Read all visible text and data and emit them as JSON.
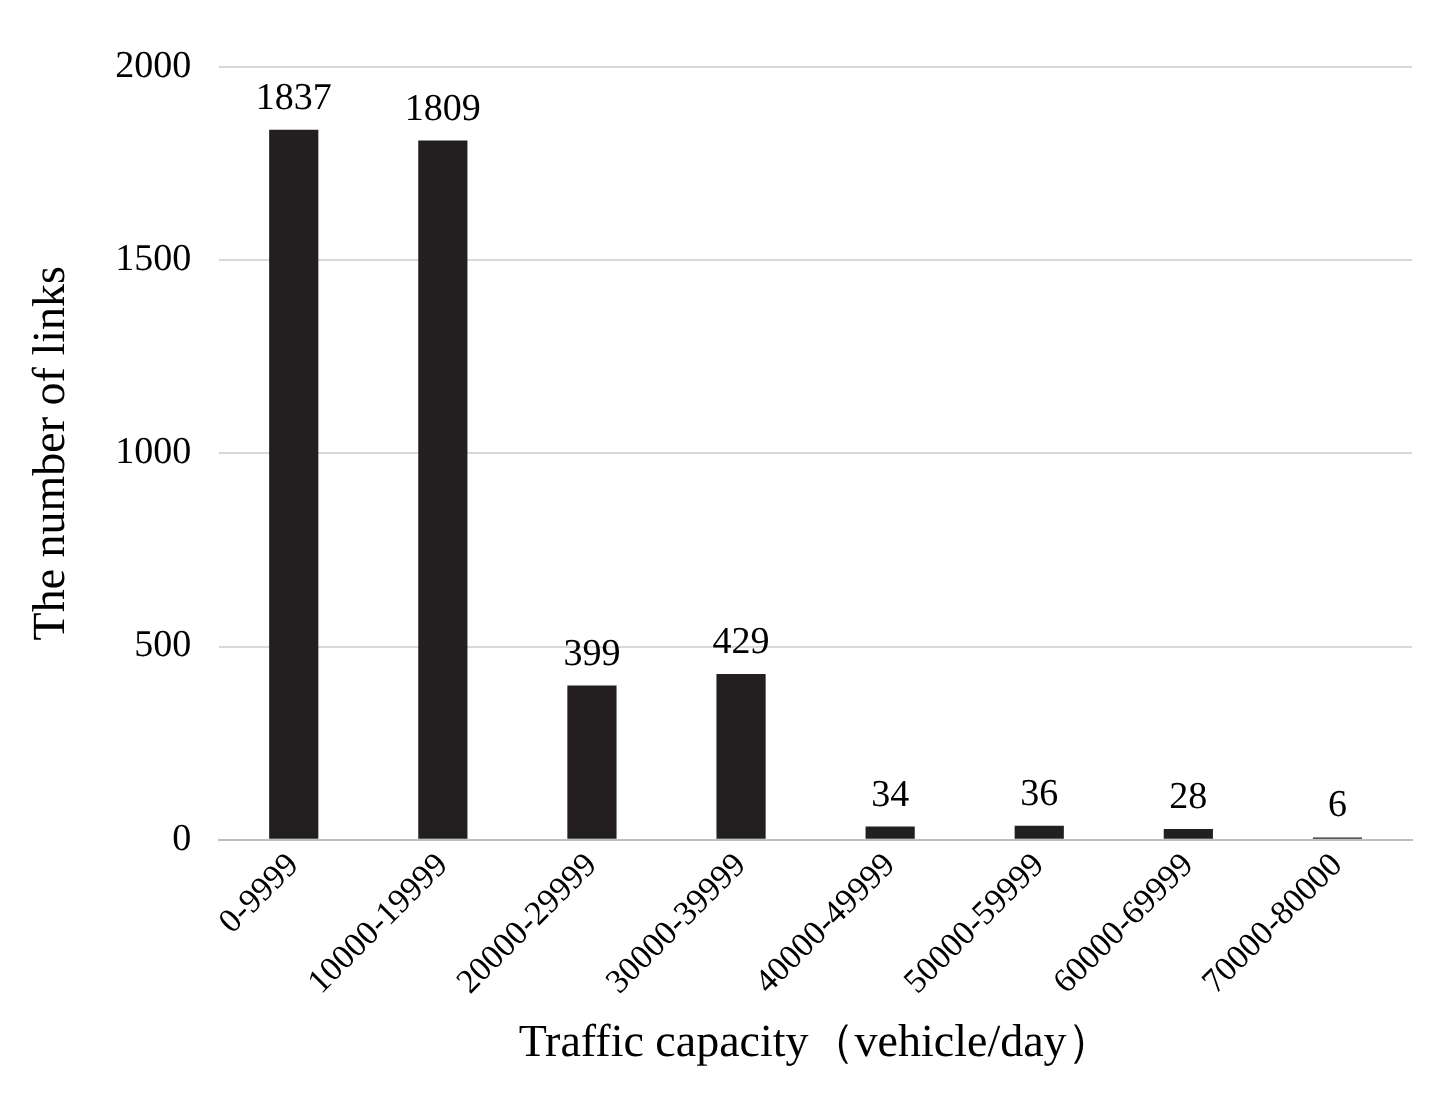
{
  "chart_data": {
    "type": "bar",
    "xlabel": "Traffic capacity（vehicle/day）",
    "ylabel": "The number of links",
    "categories": [
      "0-9999",
      "10000-19999",
      "20000-29999",
      "30000-39999",
      "40000-49999",
      "50000-59999",
      "60000-69999",
      "70000-80000"
    ],
    "values": [
      1837,
      1809,
      399,
      429,
      34,
      36,
      28,
      6
    ],
    "color": "#231f20",
    "ylim": [
      0,
      2000
    ],
    "yticks": [
      0,
      500,
      1000,
      1500,
      2000
    ],
    "grid": "y",
    "legend": false,
    "data_labels": true
  }
}
